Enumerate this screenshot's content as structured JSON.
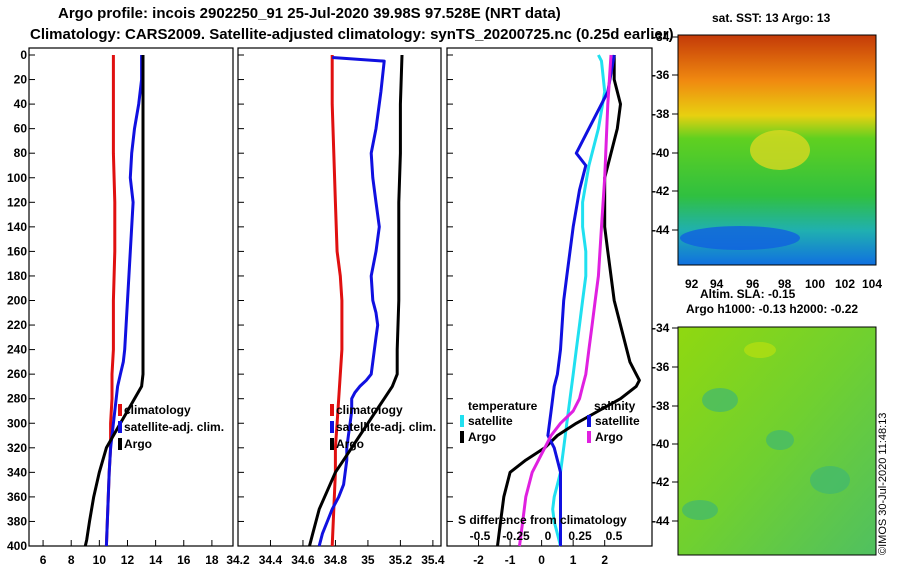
{
  "title": {
    "line1": "Argo profile: incois 2902250_91 25-Jul-2020 39.98S 97.528E (NRT data)",
    "line2": "Climatology: CARS2009. Satellite-adjusted climatology: synTS_20200725.nc (0.25d earlier)"
  },
  "colors": {
    "climatology": "#e01010",
    "satellite": "#1010e0",
    "argo": "#000000",
    "cyan": "#20e0f0",
    "magenta": "#e020e0"
  },
  "chart_data": [
    {
      "type": "line",
      "name": "temperature-profile",
      "xlim": [
        5,
        19.5
      ],
      "ylim": [
        400,
        0
      ],
      "xticks": [
        6,
        8,
        10,
        12,
        14,
        16,
        18
      ],
      "yticks": [
        0,
        20,
        40,
        60,
        80,
        100,
        120,
        140,
        160,
        180,
        200,
        220,
        240,
        260,
        280,
        300,
        320,
        340,
        360,
        380,
        400
      ],
      "legend": [
        "climatology",
        "satellite-adj. clim.",
        "Argo"
      ],
      "series": [
        {
          "name": "climatology",
          "color": "red",
          "x": [
            11.0,
            11.0,
            11.0,
            11.1,
            11.1,
            11.0,
            11.0,
            10.9,
            10.9,
            10.8,
            10.8,
            10.7,
            10.6,
            10.5
          ],
          "y": [
            0,
            40,
            80,
            120,
            160,
            200,
            240,
            260,
            280,
            300,
            320,
            340,
            370,
            400
          ]
        },
        {
          "name": "satellite-adj. clim.",
          "color": "blue",
          "x": [
            13.0,
            13.0,
            12.8,
            12.5,
            12.3,
            12.2,
            12.3,
            12.4,
            12.3,
            12.2,
            12.1,
            12.0,
            11.9,
            11.8,
            11.7,
            11.5,
            11.3,
            11.2,
            11.1,
            11.0,
            10.9,
            10.8,
            10.7,
            10.6,
            10.5
          ],
          "y": [
            0,
            20,
            40,
            60,
            80,
            100,
            110,
            120,
            140,
            160,
            180,
            200,
            220,
            240,
            250,
            260,
            270,
            280,
            290,
            300,
            310,
            320,
            340,
            370,
            400
          ]
        },
        {
          "name": "Argo",
          "color": "black",
          "x": [
            13.1,
            13.1,
            13.1,
            13.1,
            13.1,
            13.1,
            13.1,
            13.1,
            13.1,
            13.0,
            12.5,
            12.0,
            11.5,
            11.0,
            10.5,
            10.0,
            9.6,
            9.3,
            9.1,
            9.0
          ],
          "y": [
            0,
            40,
            80,
            120,
            160,
            200,
            240,
            250,
            260,
            270,
            280,
            290,
            300,
            310,
            320,
            340,
            360,
            380,
            395,
            400
          ]
        }
      ]
    },
    {
      "type": "line",
      "name": "salinity-profile",
      "xlim": [
        34.2,
        35.45
      ],
      "ylim": [
        400,
        0
      ],
      "xticks": [
        34.2,
        34.4,
        34.6,
        34.8,
        35,
        35.2,
        35.4
      ],
      "legend": [
        "climatology",
        "satellite-adj. clim.",
        "Argo"
      ],
      "series": [
        {
          "name": "climatology",
          "color": "red",
          "x": [
            34.78,
            34.78,
            34.79,
            34.8,
            34.81,
            34.83,
            34.84,
            34.84,
            34.83,
            34.82,
            34.81,
            34.8,
            34.8,
            34.79,
            34.78
          ],
          "y": [
            0,
            40,
            80,
            120,
            160,
            180,
            200,
            240,
            260,
            280,
            300,
            320,
            340,
            370,
            400
          ]
        },
        {
          "name": "satellite-adj. clim.",
          "color": "blue",
          "x": [
            34.78,
            35.1,
            35.08,
            35.05,
            35.02,
            35.03,
            35.05,
            35.07,
            35.05,
            35.02,
            35.03,
            35.05,
            35.06,
            35.05,
            35.04,
            35.03,
            35.02,
            34.99,
            34.95,
            34.92,
            34.9,
            34.9,
            34.89,
            34.88,
            34.87,
            34.87,
            34.86,
            34.85,
            34.82,
            34.78,
            34.75,
            34.72,
            34.7
          ],
          "y": [
            2,
            5,
            30,
            60,
            80,
            100,
            120,
            140,
            160,
            180,
            200,
            210,
            220,
            230,
            240,
            250,
            260,
            265,
            270,
            275,
            280,
            290,
            300,
            310,
            320,
            330,
            340,
            350,
            360,
            370,
            380,
            390,
            400
          ]
        },
        {
          "name": "Argo",
          "color": "black",
          "x": [
            35.21,
            35.2,
            35.2,
            35.19,
            35.19,
            35.19,
            35.18,
            35.18,
            35.15,
            35.1,
            35.05,
            35.0,
            34.95,
            34.9,
            34.85,
            34.8,
            34.75,
            34.7,
            34.66,
            34.64
          ],
          "y": [
            0,
            40,
            80,
            120,
            160,
            200,
            240,
            260,
            270,
            280,
            290,
            300,
            310,
            320,
            330,
            340,
            355,
            370,
            390,
            400
          ]
        }
      ]
    },
    {
      "type": "line",
      "name": "difference-from-climatology",
      "xlim": [
        -3,
        3.5
      ],
      "ylim": [
        400,
        0
      ],
      "xticks": [
        -2,
        -1,
        0,
        1,
        2
      ],
      "annotation": "S difference from climatology",
      "s_ticks": [
        "-0.5",
        "-0.25",
        "0",
        "0.25",
        "0.5"
      ],
      "legend": {
        "temperature": "temperature",
        "salinity": "salinity",
        "satellite_t": "satellite",
        "argo_t": "Argo",
        "satellite_s": "satellite",
        "argo_s": "Argo"
      },
      "series": [
        {
          "name": "T satellite",
          "color": "cyan",
          "x": [
            1.8,
            1.9,
            2.0,
            1.8,
            1.5,
            1.3,
            1.3,
            1.4,
            1.4,
            1.3,
            1.2,
            1.1,
            1.0,
            0.9,
            0.8,
            0.7,
            0.6,
            0.5,
            0.4,
            0.35,
            0.4,
            0.5,
            0.6
          ],
          "y": [
            0,
            5,
            30,
            60,
            90,
            120,
            140,
            160,
            180,
            200,
            220,
            240,
            260,
            280,
            300,
            320,
            340,
            350,
            360,
            370,
            380,
            390,
            400
          ]
        },
        {
          "name": "T Argo",
          "color": "black",
          "x": [
            2.3,
            2.3,
            2.5,
            2.4,
            2.2,
            2.0,
            2.0,
            2.1,
            2.3,
            2.6,
            2.8,
            3.0,
            3.1,
            3.0,
            2.5,
            1.8,
            1.1,
            0.5,
            0.1,
            -0.5,
            -1.0,
            -1.2,
            -1.3,
            -1.4
          ],
          "y": [
            0,
            20,
            40,
            60,
            80,
            100,
            140,
            160,
            200,
            230,
            250,
            260,
            265,
            270,
            280,
            290,
            300,
            310,
            320,
            330,
            340,
            360,
            380,
            400
          ]
        },
        {
          "name": "S satellite",
          "color": "blue",
          "x": [
            2.3,
            2.1,
            1.5,
            1.1,
            1.4,
            1.2,
            1.0,
            0.8,
            0.7,
            0.6,
            0.5,
            0.4,
            0.3,
            0.2,
            0.4,
            0.5,
            0.6,
            0.6,
            0.6,
            0.6
          ],
          "y": [
            0,
            30,
            60,
            80,
            90,
            110,
            140,
            180,
            200,
            240,
            260,
            270,
            290,
            310,
            320,
            330,
            340,
            360,
            380,
            400
          ]
        },
        {
          "name": "S Argo",
          "color": "magenta",
          "x": [
            2.2,
            2.1,
            2.0,
            1.9,
            1.8,
            1.7,
            1.6,
            1.5,
            1.4,
            1.3,
            1.2,
            1.0,
            0.6,
            0.3,
            0.1,
            -0.1,
            -0.3,
            -0.5,
            -0.6,
            -0.7
          ],
          "y": [
            0,
            40,
            100,
            140,
            180,
            200,
            220,
            240,
            260,
            270,
            280,
            290,
            300,
            310,
            320,
            330,
            340,
            360,
            380,
            400
          ]
        }
      ]
    }
  ],
  "maps": {
    "sst": {
      "title": "sat. SST: 13 Argo: 13",
      "lat_ticks": [
        "-34",
        "-36",
        "-38",
        "-40",
        "-42",
        "-44"
      ],
      "lon_ticks": [
        "92",
        "94",
        "96",
        "98",
        "100",
        "102",
        "104"
      ]
    },
    "sla": {
      "title1": "Altim. SLA: -0.15",
      "title2": "Argo h1000: -0.13 h2000: -0.22",
      "lat_ticks": [
        "-34",
        "-36",
        "-38",
        "-40",
        "-42",
        "-44"
      ]
    }
  },
  "credit": "©IMOS 30-Jul-2020 11:48:13"
}
